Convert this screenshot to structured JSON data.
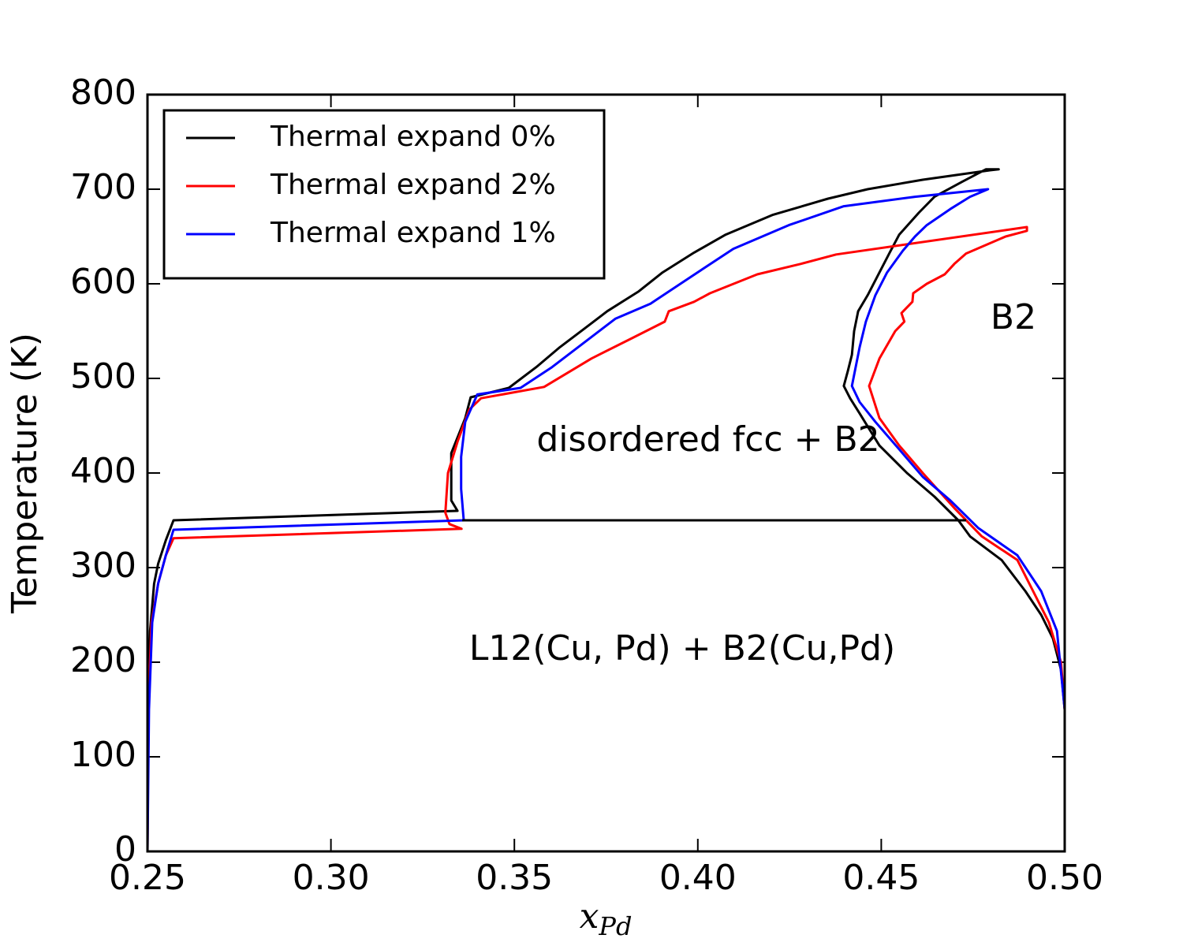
{
  "chart_data": {
    "type": "line",
    "xlabel": {
      "text": "x",
      "subscript": "Pd"
    },
    "ylabel": "Temperature (K)",
    "xlim": [
      0.25,
      0.5
    ],
    "ylim": [
      0,
      800
    ],
    "xticks": [
      {
        "value": 0.25,
        "label": "0.25"
      },
      {
        "value": 0.3,
        "label": "0.30"
      },
      {
        "value": 0.35,
        "label": "0.35"
      },
      {
        "value": 0.4,
        "label": "0.40"
      },
      {
        "value": 0.45,
        "label": "0.45"
      },
      {
        "value": 0.5,
        "label": "0.50"
      }
    ],
    "yticks": [
      0,
      100,
      200,
      300,
      400,
      500,
      600,
      700,
      800
    ],
    "grid": false,
    "legend": "upper left",
    "annotations": [
      "disordered fcc + B2",
      "L12(Cu, Pd) + B2(Cu,Pd)",
      "B2"
    ],
    "series": [
      {
        "name": "Thermal expand 0%",
        "color": "#000000",
        "x": [
          0.25,
          0.2502,
          0.2507,
          0.2518,
          0.2529,
          0.255,
          0.2571,
          0.3345,
          0.3328,
          0.3328,
          0.3366,
          0.3381,
          0.3485,
          0.356,
          0.3624,
          0.3689,
          0.3753,
          0.3839,
          0.3904,
          0.399,
          0.4076,
          0.4205,
          0.4355,
          0.4463,
          0.4613,
          0.4796,
          0.482,
          0.4785,
          0.4721,
          0.4645,
          0.4602,
          0.4549,
          0.4523,
          0.4495,
          0.4463,
          0.4437,
          0.4426,
          0.442,
          0.4409,
          0.4398,
          0.4415,
          0.4441,
          0.4495,
          0.457,
          0.4645,
          0.471,
          0.4742,
          0.4828,
          0.4893,
          0.4936,
          0.4968,
          0.499,
          0.5
        ],
        "values": [
          0,
          150,
          233,
          283,
          304,
          329,
          350,
          360,
          371,
          421,
          458,
          480,
          490,
          512,
          533,
          552,
          571,
          592,
          612,
          633,
          652,
          673,
          690,
          700,
          710,
          720,
          721,
          721,
          708,
          692,
          675,
          652,
          633,
          612,
          588,
          571,
          550,
          525,
          508,
          492,
          479,
          463,
          429,
          400,
          375,
          350,
          333,
          308,
          275,
          250,
          225,
          192,
          150
        ]
      },
      {
        "name": "Thermal expand 2%",
        "color": "#ff0000",
        "x": [
          0.25,
          0.2502,
          0.2511,
          0.2529,
          0.255,
          0.2571,
          0.3356,
          0.3323,
          0.3312,
          0.3319,
          0.3345,
          0.3377,
          0.3409,
          0.3581,
          0.371,
          0.3818,
          0.391,
          0.3921,
          0.399,
          0.4033,
          0.4162,
          0.428,
          0.4377,
          0.4897,
          0.4897,
          0.4839,
          0.4731,
          0.4699,
          0.4673,
          0.4624,
          0.4587,
          0.4585,
          0.4555,
          0.4563,
          0.4538,
          0.4495,
          0.4467,
          0.4495,
          0.4549,
          0.4613,
          0.4699,
          0.4774,
          0.4871,
          0.4914,
          0.4957,
          0.499,
          0.5
        ],
        "values": [
          0,
          150,
          242,
          283,
          313,
          331,
          341,
          346,
          358,
          400,
          433,
          467,
          479,
          491,
          521,
          542,
          560,
          571,
          581,
          590,
          610,
          621,
          631,
          660,
          656,
          650,
          632,
          621,
          610,
          600,
          590,
          581,
          569,
          560,
          550,
          521,
          492,
          458,
          429,
          400,
          363,
          333,
          308,
          275,
          242,
          200,
          150
        ]
      },
      {
        "name": "Thermal expand 1%",
        "color": "#0000ff",
        "x": [
          0.25,
          0.2504,
          0.2513,
          0.2529,
          0.255,
          0.2571,
          0.3362,
          0.3355,
          0.3355,
          0.3366,
          0.3399,
          0.3517,
          0.3603,
          0.3775,
          0.3871,
          0.3968,
          0.4097,
          0.4248,
          0.4398,
          0.4592,
          0.4791,
          0.4742,
          0.4688,
          0.4624,
          0.4592,
          0.4559,
          0.4516,
          0.4484,
          0.4458,
          0.4441,
          0.442,
          0.4441,
          0.4484,
          0.4549,
          0.4613,
          0.4688,
          0.4764,
          0.4871,
          0.4936,
          0.4979,
          0.5
        ],
        "values": [
          0,
          150,
          242,
          283,
          313,
          340,
          350,
          383,
          417,
          454,
          483,
          490,
          512,
          563,
          579,
          604,
          637,
          662,
          682,
          692,
          700,
          692,
          679,
          662,
          650,
          635,
          612,
          588,
          560,
          533,
          492,
          475,
          454,
          425,
          396,
          371,
          342,
          313,
          275,
          233,
          150
        ]
      },
      {
        "color": "#000000",
        "x": [
          0.3358,
          0.4731
        ],
        "values": [
          350,
          350
        ]
      }
    ]
  }
}
